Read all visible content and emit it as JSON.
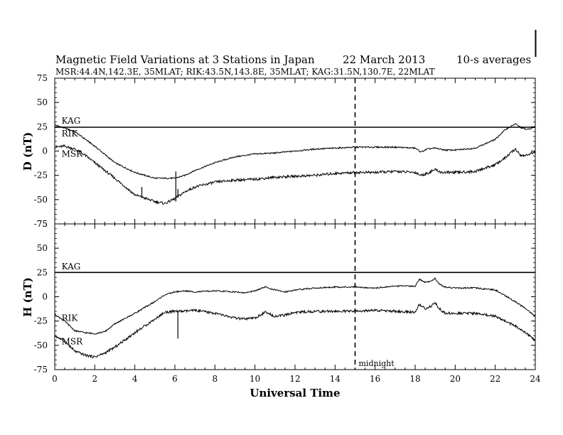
{
  "header": {
    "title": "Magnetic Field Variations at 3 Stations in Japan",
    "date": "22 March   2013",
    "averaging": "10-s averages",
    "stations_line": "MSR:44.4N,142.3E, 35MLAT;  RIK:43.5N,143.8E, 35MLAT;  KAG:31.5N,130.7E, 22MLAT"
  },
  "annotations": {
    "midnight_label": "midnight",
    "midnight_ut": 15
  },
  "chart_data": [
    {
      "type": "line",
      "panel": "D",
      "ylabel": "D (nT)",
      "xlabel": "",
      "xlim": [
        0,
        24
      ],
      "ylim": [
        -75,
        75
      ],
      "yticks": [
        75,
        50,
        25,
        0,
        -25,
        -50,
        -75
      ],
      "xticks": [
        0,
        2,
        4,
        6,
        8,
        10,
        12,
        14,
        16,
        18,
        20,
        22,
        24
      ],
      "series": [
        {
          "name": "KAG",
          "x": [
            0,
            24
          ],
          "y": [
            24.5,
            24.5
          ]
        },
        {
          "name": "RIK",
          "x": [
            0,
            1,
            2,
            3,
            4,
            5,
            6,
            6.5,
            7,
            8,
            9,
            10,
            11,
            12,
            13,
            14,
            15,
            16,
            17,
            18,
            18.3,
            18.6,
            19,
            19.5,
            20,
            21,
            22,
            22.5,
            23,
            23.3,
            23.6,
            24
          ],
          "y": [
            27,
            20,
            5,
            -12,
            -22,
            -28,
            -28,
            -25,
            -20,
            -12,
            -6,
            -3,
            -2,
            0,
            2,
            3,
            4,
            4,
            4,
            3,
            -1,
            2,
            3,
            1,
            1,
            3,
            12,
            22,
            28,
            24,
            22,
            25
          ]
        },
        {
          "name": "MSR",
          "x": [
            0,
            0.5,
            1,
            1.5,
            2,
            3,
            4,
            5,
            5.5,
            6,
            6.5,
            7,
            8,
            9,
            10,
            11,
            12,
            13,
            14,
            15,
            16,
            17,
            18,
            18.3,
            18.6,
            19,
            19.3,
            19.6,
            20,
            21,
            22,
            22.5,
            23,
            23.3,
            23.6,
            24
          ],
          "y": [
            4,
            5,
            2,
            -4,
            -12,
            -28,
            -45,
            -52,
            -54,
            -49,
            -42,
            -37,
            -32,
            -30,
            -29,
            -27,
            -26,
            -25,
            -23,
            -22,
            -22,
            -21,
            -22,
            -25,
            -23,
            -19,
            -22,
            -22,
            -22,
            -21,
            -14,
            -7,
            2,
            -5,
            -4,
            -1
          ]
        }
      ],
      "spikes": [
        {
          "x": 4.35,
          "y_from": -47,
          "y_to": -37
        },
        {
          "x": 6.05,
          "y_from": -52,
          "y_to": -21
        },
        {
          "x": 6.15,
          "y_from": -48,
          "y_to": -39
        }
      ],
      "station_labels": [
        {
          "text": "KAG",
          "x": 0.2,
          "y": 28
        },
        {
          "text": "RIK",
          "x": 0.2,
          "y": 15
        },
        {
          "text": "MSR",
          "x": 0.2,
          "y": -6
        }
      ]
    },
    {
      "type": "line",
      "panel": "H",
      "ylabel": "H (nT)",
      "xlabel": "Universal Time",
      "xlim": [
        0,
        24
      ],
      "ylim": [
        -75,
        75
      ],
      "yticks": [
        75,
        50,
        25,
        0,
        -25,
        -50,
        -75
      ],
      "xticks": [
        0,
        2,
        4,
        6,
        8,
        10,
        12,
        14,
        16,
        18,
        20,
        22,
        24
      ],
      "series": [
        {
          "name": "KAG",
          "x": [
            0,
            24
          ],
          "y": [
            25,
            25
          ]
        },
        {
          "name": "RIK",
          "x": [
            0,
            0.5,
            1,
            1.5,
            2,
            2.5,
            3,
            4,
            5,
            5.5,
            6,
            6.5,
            7,
            8,
            9,
            9.5,
            10,
            10.5,
            11,
            11.5,
            12,
            13,
            14,
            15,
            16,
            17,
            18,
            18.2,
            18.5,
            18.8,
            19,
            19.2,
            19.5,
            20,
            21,
            22,
            22.5,
            23,
            23.5,
            24
          ],
          "y": [
            -18,
            -25,
            -35,
            -37,
            -38,
            -36,
            -28,
            -17,
            -5,
            2,
            5,
            6,
            5,
            6,
            5,
            4,
            6,
            10,
            7,
            5,
            7,
            9,
            10,
            10,
            9,
            11,
            11,
            18,
            15,
            16,
            19,
            13,
            10,
            9,
            9,
            7,
            1,
            -5,
            -12,
            -20
          ]
        },
        {
          "name": "MSR",
          "x": [
            0,
            0.5,
            1,
            1.5,
            2,
            2.5,
            3,
            4,
            5,
            5.5,
            6,
            6.5,
            7,
            8,
            9,
            9.5,
            10,
            10.5,
            11,
            11.5,
            12,
            13,
            14,
            15,
            16,
            17,
            18,
            18.2,
            18.5,
            18.8,
            19,
            19.2,
            19.5,
            20,
            21,
            22,
            22.5,
            23,
            23.5,
            24
          ],
          "y": [
            -40,
            -46,
            -56,
            -60,
            -62,
            -58,
            -52,
            -37,
            -23,
            -16,
            -15,
            -15,
            -14,
            -17,
            -22,
            -23,
            -22,
            -16,
            -20,
            -19,
            -16,
            -15,
            -15,
            -15,
            -14,
            -15,
            -16,
            -8,
            -12,
            -10,
            -6,
            -12,
            -17,
            -17,
            -17,
            -20,
            -25,
            -30,
            -37,
            -45
          ]
        }
      ],
      "spikes": [
        {
          "x": 6.15,
          "y_from": -43,
          "y_to": -15
        }
      ],
      "station_labels": [
        {
          "text": "KAG",
          "x": 0.2,
          "y": 28
        },
        {
          "text": "RIK",
          "x": 0.2,
          "y": -25
        },
        {
          "text": "MSR",
          "x": 0.2,
          "y": -49
        }
      ]
    }
  ]
}
